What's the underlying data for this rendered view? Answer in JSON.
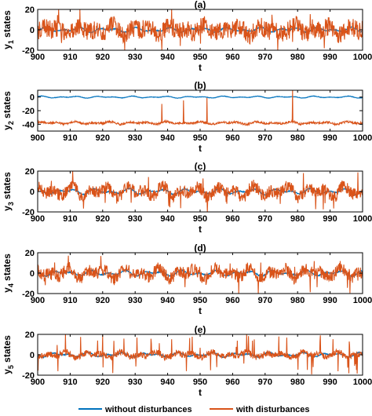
{
  "chart_data": [
    {
      "type": "line",
      "title": "(a)",
      "xlabel": "t",
      "ylabel_main": "y",
      "ylabel_sub": "1",
      "ylabel_rest": " states",
      "xlim": [
        900,
        1000
      ],
      "ylim": [
        -20,
        20
      ],
      "xticks": [
        900,
        910,
        920,
        930,
        940,
        950,
        960,
        970,
        980,
        990,
        1000
      ],
      "yticks": [
        -20,
        0,
        20
      ],
      "series": [
        {
          "name": "without disturbances",
          "color": "#0072BD",
          "base": 0,
          "amp": 2.5,
          "noise": 0.5,
          "spikes": 0
        },
        {
          "name": "with disturbances",
          "color": "#D95319",
          "base": 0,
          "amp": 5,
          "noise": 9,
          "spikes": 1
        }
      ]
    },
    {
      "type": "line",
      "title": "(b)",
      "xlabel": "t",
      "ylabel_main": "y",
      "ylabel_sub": "2",
      "ylabel_rest": " states",
      "xlim": [
        900,
        1000
      ],
      "ylim": [
        -50,
        10
      ],
      "xticks": [
        900,
        910,
        920,
        930,
        940,
        950,
        960,
        970,
        980,
        990,
        1000
      ],
      "yticks": [
        -40,
        -20,
        0
      ],
      "series": [
        {
          "name": "without disturbances",
          "color": "#0072BD",
          "base": 0,
          "amp": 1.5,
          "noise": 0.3,
          "spikes": 0
        },
        {
          "name": "with disturbances",
          "color": "#D95319",
          "base": -38,
          "amp": 2,
          "noise": 1.5,
          "spikes": 0.3
        }
      ]
    },
    {
      "type": "line",
      "title": "(c)",
      "xlabel": "t",
      "ylabel_main": "y",
      "ylabel_sub": "3",
      "ylabel_rest": " states",
      "xlim": [
        900,
        1000
      ],
      "ylim": [
        -20,
        20
      ],
      "xticks": [
        900,
        910,
        920,
        930,
        940,
        950,
        960,
        970,
        980,
        990,
        1000
      ],
      "yticks": [
        -20,
        0,
        20
      ],
      "series": [
        {
          "name": "without disturbances",
          "color": "#0072BD",
          "base": 0,
          "amp": 3,
          "noise": 0.5,
          "spikes": 0
        },
        {
          "name": "with disturbances",
          "color": "#D95319",
          "base": 0,
          "amp": 6,
          "noise": 6,
          "spikes": 1
        }
      ]
    },
    {
      "type": "line",
      "title": "(d)",
      "xlabel": "t",
      "ylabel_main": "y",
      "ylabel_sub": "4",
      "ylabel_rest": " states",
      "xlim": [
        900,
        1000
      ],
      "ylim": [
        -20,
        20
      ],
      "xticks": [
        900,
        910,
        920,
        930,
        940,
        950,
        960,
        970,
        980,
        990,
        1000
      ],
      "yticks": [
        -20,
        0,
        20
      ],
      "series": [
        {
          "name": "without disturbances",
          "color": "#0072BD",
          "base": 0,
          "amp": 3,
          "noise": 0.5,
          "spikes": 0
        },
        {
          "name": "with disturbances",
          "color": "#D95319",
          "base": 0,
          "amp": 6,
          "noise": 6,
          "spikes": 1
        }
      ]
    },
    {
      "type": "line",
      "title": "(e)",
      "xlabel": "t",
      "ylabel_main": "y",
      "ylabel_sub": "5",
      "ylabel_rest": " states",
      "xlim": [
        900,
        1000
      ],
      "ylim": [
        -20,
        20
      ],
      "xticks": [
        900,
        910,
        920,
        930,
        940,
        950,
        960,
        970,
        980,
        990,
        1000
      ],
      "yticks": [
        -20,
        0,
        20
      ],
      "series": [
        {
          "name": "without disturbances",
          "color": "#0072BD",
          "base": 0,
          "amp": 2.5,
          "noise": 0.5,
          "spikes": 0
        },
        {
          "name": "with disturbances",
          "color": "#D95319",
          "base": 0,
          "amp": 3,
          "noise": 3,
          "spikes": 2
        }
      ]
    }
  ],
  "legend": {
    "placement": "bottom",
    "items": [
      {
        "label": "without disturbances",
        "color": "#0072BD"
      },
      {
        "label": "with disturbances",
        "color": "#D95319"
      }
    ]
  }
}
